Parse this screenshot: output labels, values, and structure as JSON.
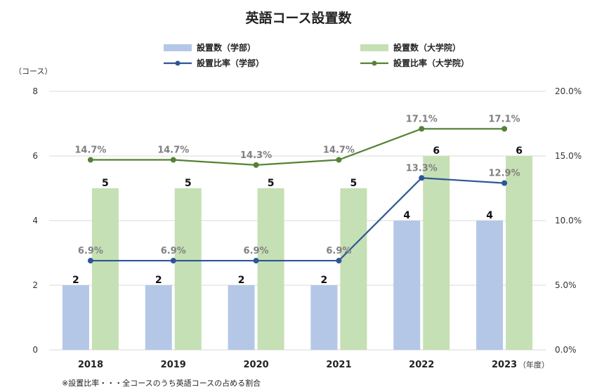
{
  "chart_data": {
    "type": "bar",
    "title": "英語コース設置数",
    "categories": [
      "2018",
      "2019",
      "2020",
      "2021",
      "2022",
      "2023"
    ],
    "y_left_unit": "（コース）",
    "x_unit": "（年度）",
    "y_left_ticks": [
      "0",
      "2",
      "4",
      "6",
      "8"
    ],
    "y_right_ticks": [
      "0.0%",
      "5.0%",
      "10.0%",
      "15.0%",
      "20.0%"
    ],
    "ylim_left": [
      0,
      8
    ],
    "ylim_right": [
      0,
      20
    ],
    "series": [
      {
        "name": "設置数（学部）",
        "kind": "bar",
        "axis": "left",
        "color": "#b4c7e7",
        "values": [
          2,
          2,
          2,
          2,
          4,
          4
        ],
        "labels": [
          "2",
          "2",
          "2",
          "2",
          "4",
          "4"
        ]
      },
      {
        "name": "設置数（大学院）",
        "kind": "bar",
        "axis": "left",
        "color": "#c5e0b4",
        "values": [
          5,
          5,
          5,
          5,
          6,
          6
        ],
        "labels": [
          "5",
          "5",
          "5",
          "5",
          "6",
          "6"
        ]
      },
      {
        "name": "設置比率（学部）",
        "kind": "line",
        "axis": "right",
        "color": "#2f5597",
        "values": [
          6.9,
          6.9,
          6.9,
          6.9,
          13.3,
          12.9
        ],
        "labels": [
          "6.9%",
          "6.9%",
          "6.9%",
          "6.9%",
          "13.3%",
          "12.9%"
        ]
      },
      {
        "name": "設置比率（大学院）",
        "kind": "line",
        "axis": "right",
        "color": "#548235",
        "values": [
          14.7,
          14.7,
          14.3,
          14.7,
          17.1,
          17.1
        ],
        "labels": [
          "14.7%",
          "14.7%",
          "14.3%",
          "14.7%",
          "17.1%",
          "17.1%"
        ]
      }
    ],
    "legend_position": "top",
    "footnote": "※設置比率・・・全コースのうち英語コースの占める割合"
  }
}
